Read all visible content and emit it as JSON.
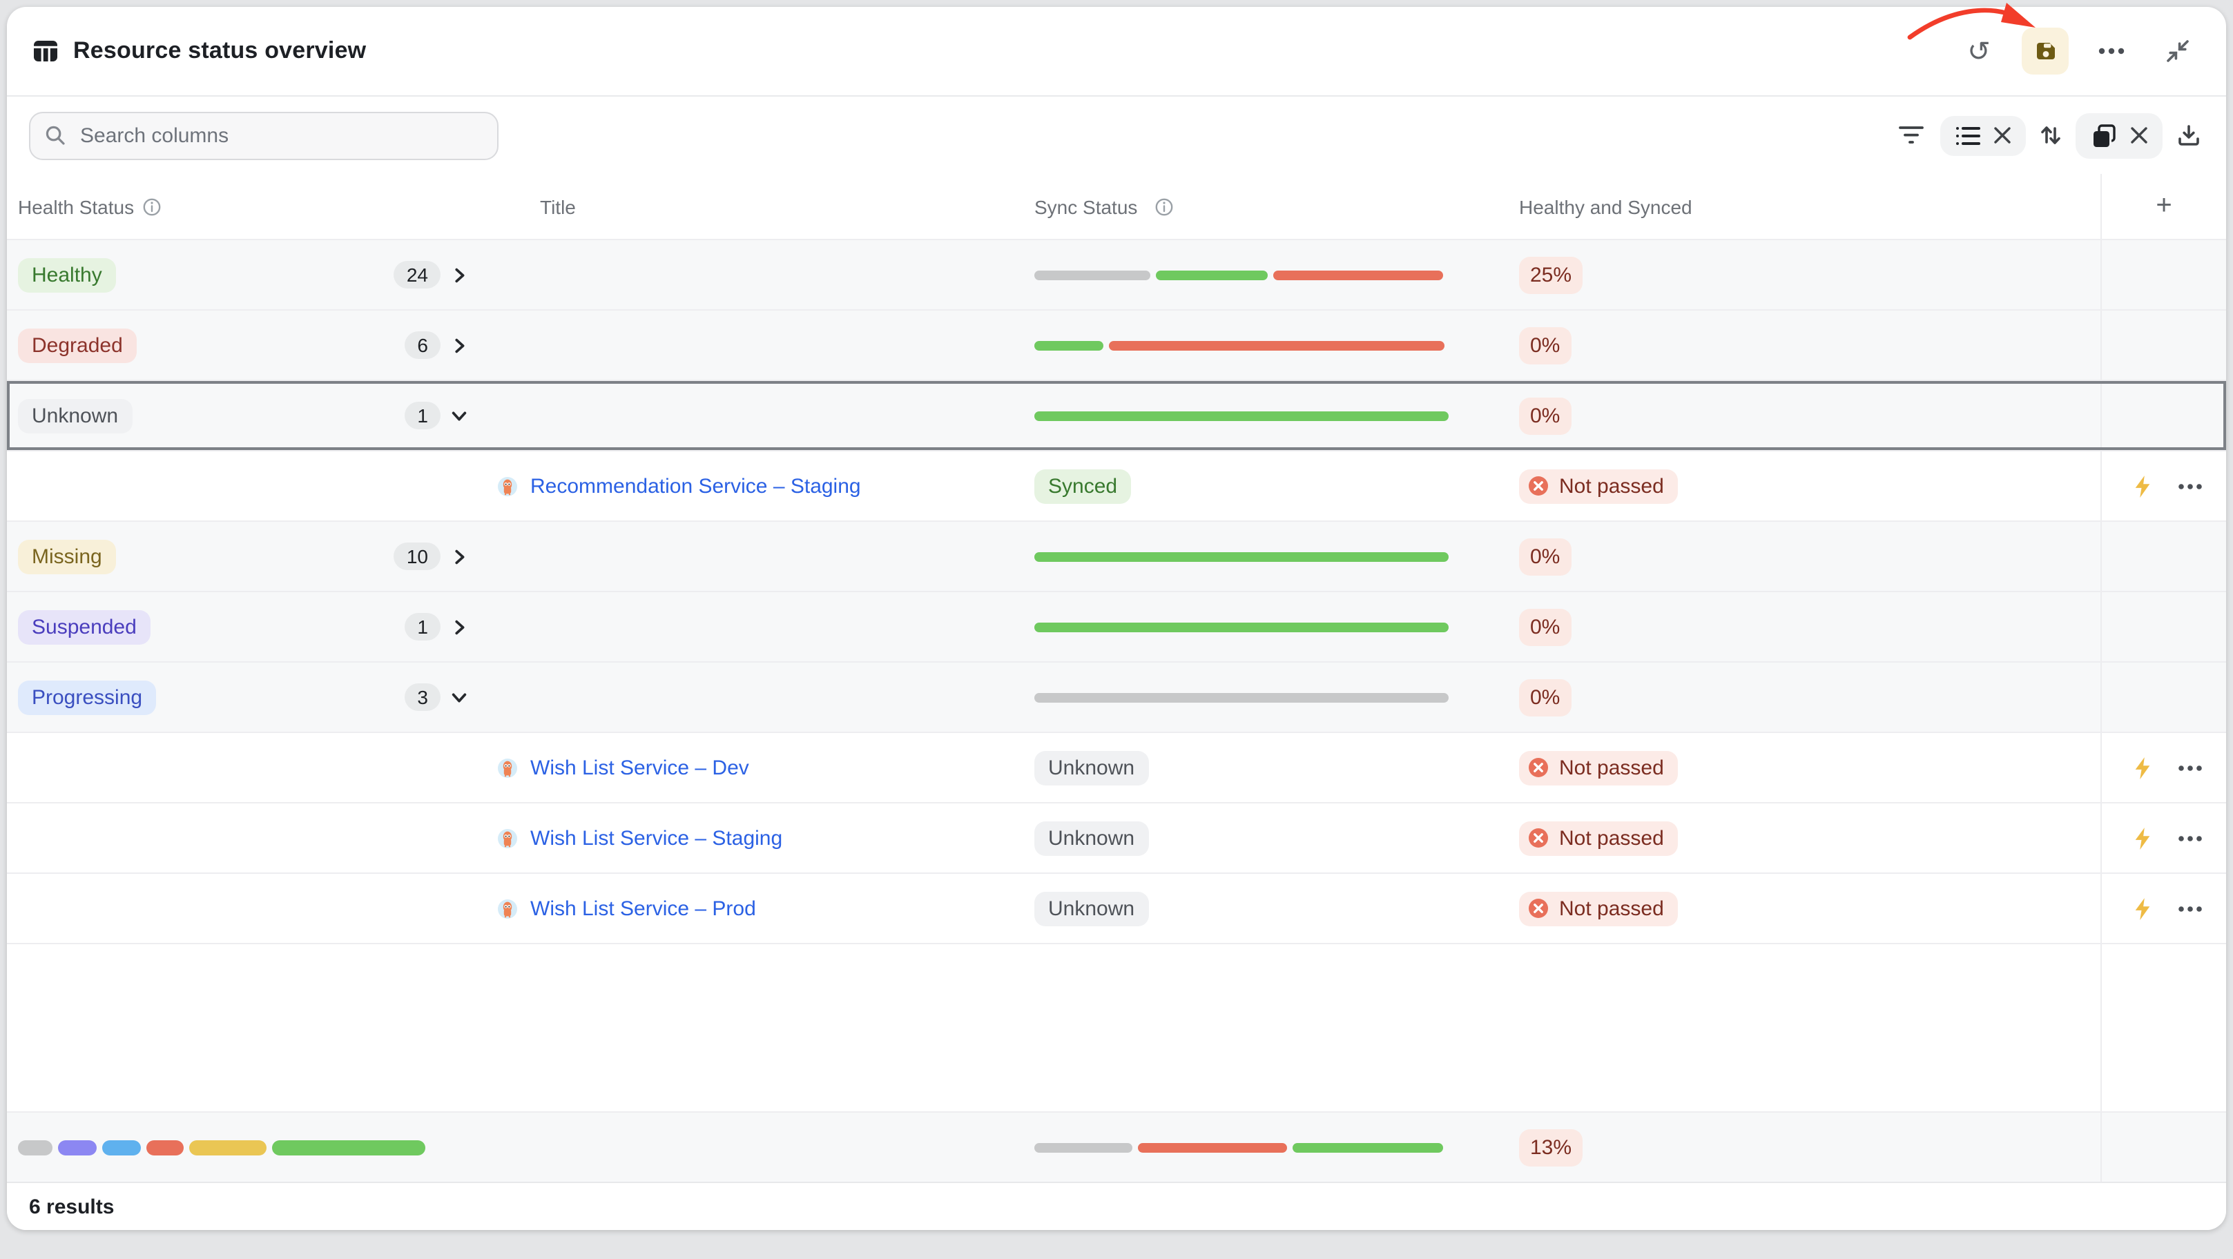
{
  "header": {
    "title": "Resource status overview",
    "actions": {
      "undo": "undo",
      "save": "save",
      "more": "more options",
      "collapse": "collapse"
    }
  },
  "toolbar": {
    "search_placeholder": "Search columns",
    "icons": [
      "filter-icon",
      "list-icon",
      "close-icon",
      "sort-icon",
      "stack-icon",
      "close-icon",
      "download-icon"
    ]
  },
  "columns": {
    "health": "Health Status",
    "title": "Title",
    "sync": "Sync Status",
    "healthy_synced": "Healthy and Synced",
    "add": "+"
  },
  "table": {
    "rows": [
      {
        "health": "Healthy",
        "count": "24",
        "pct": "25%",
        "bar": [
          {
            "color": "gray",
            "pct": 28
          },
          {
            "color": "green",
            "pct": 27
          },
          {
            "color": "red",
            "pct": 41
          }
        ]
      },
      {
        "health": "Degraded",
        "count": "6",
        "pct": "0%",
        "bar": [
          {
            "color": "green",
            "pct": 16.5
          },
          {
            "color": "red",
            "pct": 81
          }
        ]
      },
      {
        "health": "Unknown",
        "count": "1",
        "pct": "0%",
        "bar": [
          {
            "color": "green",
            "pct": 100
          }
        ]
      },
      {
        "title": "Recommendation Service – Staging",
        "sync": "Synced",
        "check": "Not passed"
      },
      {
        "health": "Missing",
        "count": "10",
        "pct": "0%",
        "bar": [
          {
            "color": "green",
            "pct": 100
          }
        ]
      },
      {
        "health": "Suspended",
        "count": "1",
        "pct": "0%",
        "bar": [
          {
            "color": "green",
            "pct": 100
          }
        ]
      },
      {
        "health": "Progressing",
        "count": "3",
        "pct": "0%",
        "bar": [
          {
            "color": "gray",
            "pct": 100
          }
        ]
      },
      {
        "title": "Wish List Service – Dev",
        "sync": "Unknown",
        "check": "Not passed"
      },
      {
        "title": "Wish List Service – Staging",
        "sync": "Unknown",
        "check": "Not passed"
      },
      {
        "title": "Wish List Service – Prod",
        "sync": "Unknown",
        "check": "Not passed"
      }
    ],
    "summary": {
      "pct": "13%",
      "health_bar": [
        {
          "color": "gray",
          "pct": 8.6
        },
        {
          "color": "purple",
          "pct": 9.5
        },
        {
          "color": "blue",
          "pct": 9.3
        },
        {
          "color": "red",
          "pct": 9.3
        },
        {
          "color": "yellow",
          "pct": 19
        },
        {
          "color": "green",
          "pct": 37.6
        }
      ],
      "sync_bar": [
        {
          "color": "gray",
          "pct": 23.5
        },
        {
          "color": "red",
          "pct": 36.3
        },
        {
          "color": "green",
          "pct": 36.3
        }
      ]
    }
  },
  "footer": {
    "results": "6 results"
  },
  "colors": {
    "bar_green": "#6fc95f",
    "bar_red": "#e8705a",
    "bar_gray": "#c7c8c9",
    "bar_purple": "#8c87f2",
    "bar_blue": "#5fb1ee",
    "bar_yellow": "#eac654",
    "link": "#2b61e4",
    "save_button_bg": "#faf2dd",
    "save_icon": "#6d5a13",
    "annotation_arrow": "#f23d2a",
    "badge_pct_bg": "#fbe9e4",
    "badge_pct_text": "#7b2c20"
  }
}
